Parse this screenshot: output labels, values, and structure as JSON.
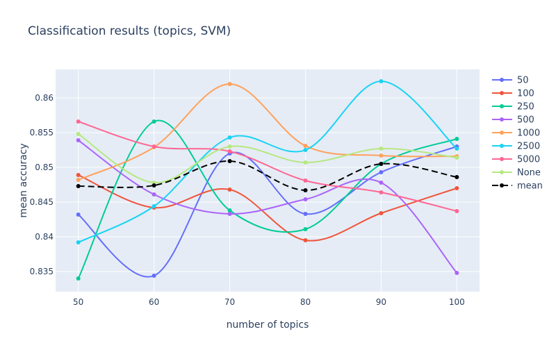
{
  "chart_data": {
    "type": "line",
    "title": "Classification results (topics, SVM)",
    "xlabel": "number of topics",
    "ylabel": "mean accuracy",
    "x": [
      50,
      60,
      70,
      80,
      90,
      100
    ],
    "x_ticks": [
      "50",
      "60",
      "70",
      "80",
      "90",
      "100"
    ],
    "xlim": [
      47,
      103
    ],
    "y_ticks": [
      "0.835",
      "0.84",
      "0.845",
      "0.85",
      "0.855",
      "0.86"
    ],
    "y_tick_values": [
      0.835,
      0.84,
      0.845,
      0.85,
      0.855,
      0.86
    ],
    "ylim": [
      0.8321,
      0.8641
    ],
    "grid": true,
    "legend_position": "right",
    "background": "#e5ecf6",
    "series": [
      {
        "name": "50",
        "color": "#636efa",
        "dash": false,
        "values": [
          0.8432,
          0.8344,
          0.852,
          0.8433,
          0.8493,
          0.853
        ]
      },
      {
        "name": "100",
        "color": "#ef553b",
        "dash": false,
        "values": [
          0.8489,
          0.8442,
          0.8468,
          0.8395,
          0.8434,
          0.847
        ]
      },
      {
        "name": "250",
        "color": "#00cc96",
        "dash": false,
        "values": [
          0.834,
          0.8566,
          0.8438,
          0.8411,
          0.8505,
          0.8541
        ]
      },
      {
        "name": "500",
        "color": "#ab63fa",
        "dash": false,
        "values": [
          0.8539,
          0.8461,
          0.8433,
          0.8454,
          0.8478,
          0.8348
        ]
      },
      {
        "name": "1000",
        "color": "#ffa15a",
        "dash": false,
        "values": [
          0.8482,
          0.8529,
          0.862,
          0.8531,
          0.8517,
          0.8516
        ]
      },
      {
        "name": "2500",
        "color": "#19d3f3",
        "dash": false,
        "values": [
          0.8392,
          0.8444,
          0.8543,
          0.8525,
          0.8624,
          0.8527
        ]
      },
      {
        "name": "5000",
        "color": "#ff6692",
        "dash": false,
        "values": [
          0.8566,
          0.853,
          0.8523,
          0.8481,
          0.8464,
          0.8437
        ]
      },
      {
        "name": "None",
        "color": "#b6e880",
        "dash": false,
        "values": [
          0.8548,
          0.8478,
          0.853,
          0.8507,
          0.8527,
          0.8514
        ]
      },
      {
        "name": "mean",
        "color": "#000000",
        "dash": true,
        "values": [
          0.8473,
          0.8474,
          0.8509,
          0.8467,
          0.8505,
          0.8486
        ]
      }
    ]
  }
}
